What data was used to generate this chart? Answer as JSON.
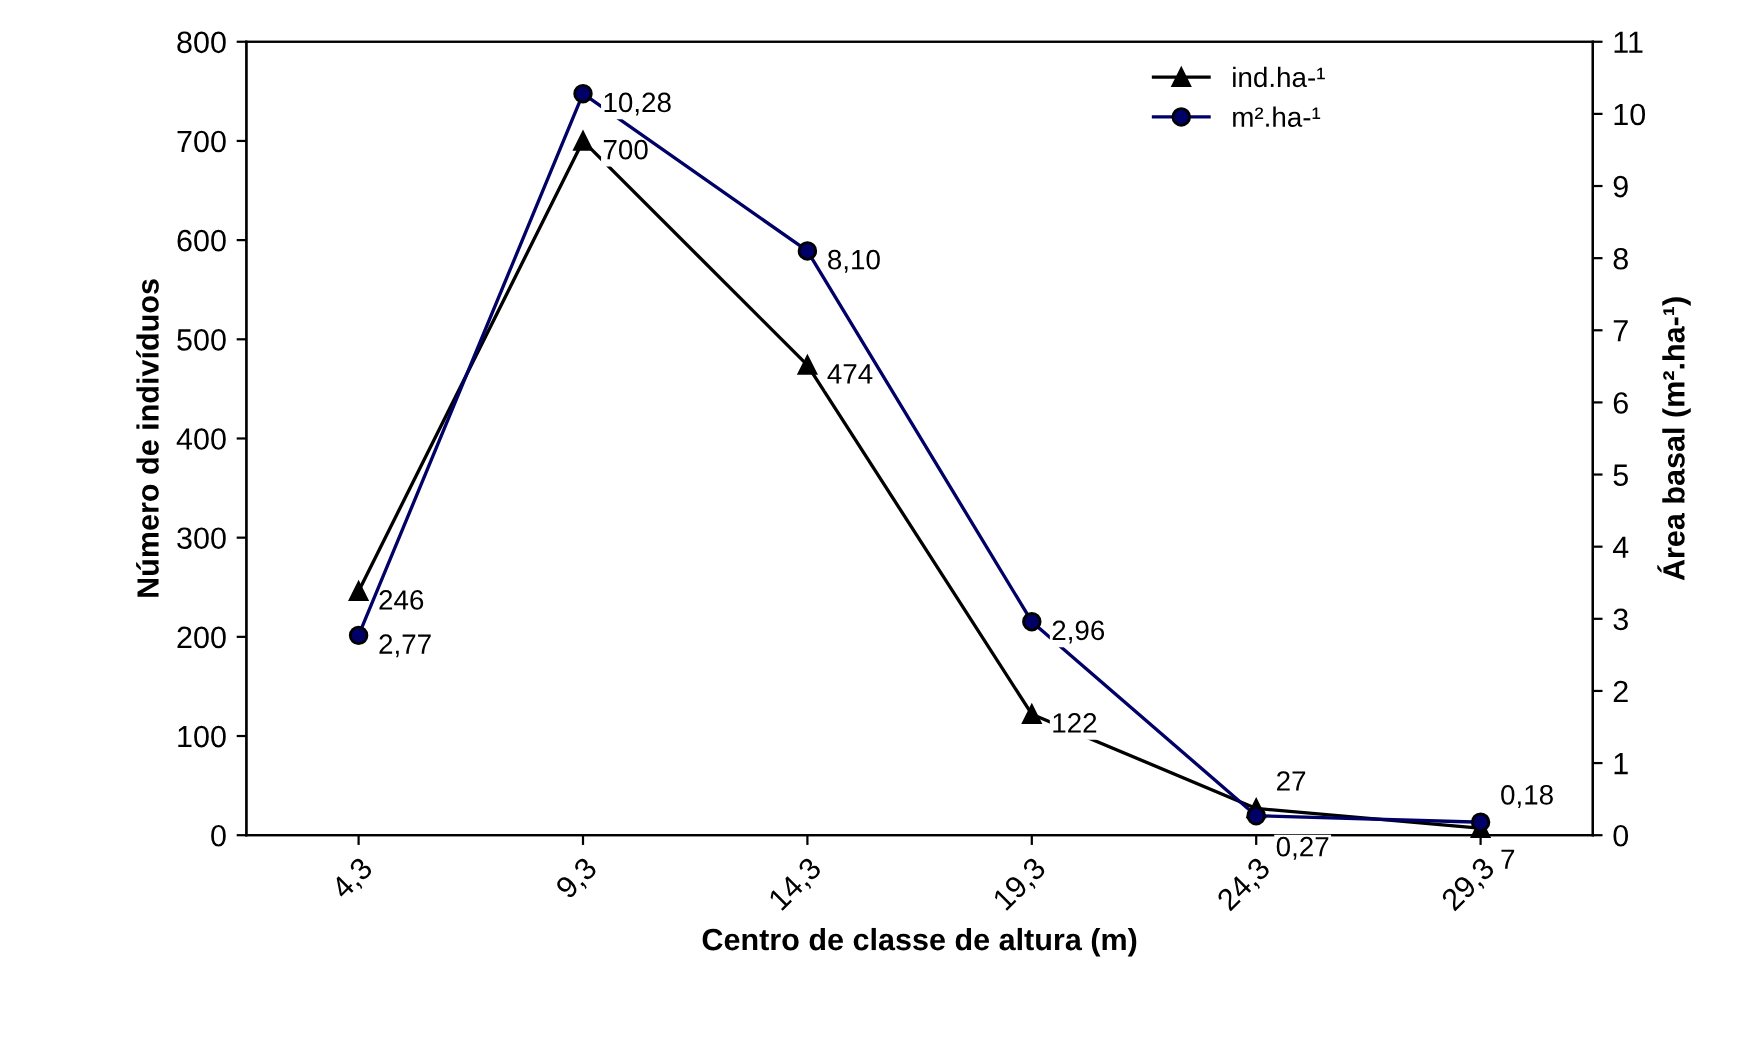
{
  "chart_data": {
    "type": "line",
    "xlabel": "Centro de classe de altura (m)",
    "ylabel": "Número de indivíduos",
    "y2label": "Área basal (m².ha-¹)",
    "categories": [
      "4,3",
      "9,3",
      "14,3",
      "19,3",
      "24,3",
      "29,3"
    ],
    "series": [
      {
        "name": "ind.ha-¹",
        "color": "#000000",
        "marker": "triangle",
        "values": [
          246,
          700,
          474,
          122,
          27,
          7
        ],
        "value_labels": [
          "246",
          "700",
          "474",
          "122",
          "27",
          "7"
        ]
      },
      {
        "name": "m².ha-¹",
        "color": "#000066",
        "marker": "circle",
        "axis": "y2",
        "values": [
          2.77,
          10.28,
          8.1,
          2.96,
          0.27,
          0.18
        ],
        "value_labels": [
          "2,77",
          "10,28",
          "8,10",
          "2,96",
          "0,27",
          "0,18"
        ]
      }
    ],
    "ylim": [
      0,
      800
    ],
    "yticks": [
      0,
      100,
      200,
      300,
      400,
      500,
      600,
      700,
      800
    ],
    "y2lim": [
      0,
      11
    ],
    "y2ticks": [
      0,
      1,
      2,
      3,
      4,
      5,
      6,
      7,
      8,
      9,
      10,
      11
    ],
    "legend": "top right",
    "grid": false,
    "line_style": "solid"
  }
}
